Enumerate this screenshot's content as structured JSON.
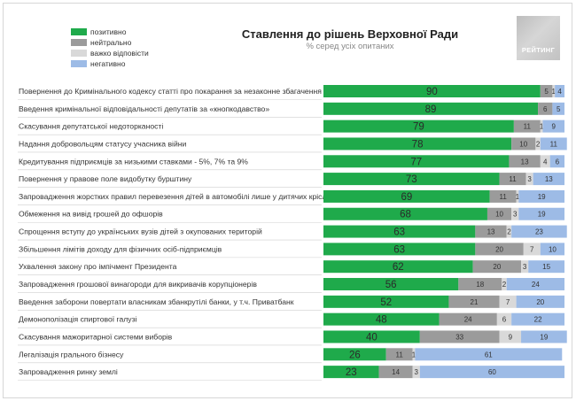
{
  "header": {
    "title": "Ставлення до рішень Верховної Ради",
    "subtitle": "% серед усіх опитаних",
    "logo_text": "РЕЙТИНГ"
  },
  "legend": [
    {
      "label": "позитивно",
      "color": "#1faa4b"
    },
    {
      "label": "нейтрально",
      "color": "#9b9b9b"
    },
    {
      "label": "важко відповісти",
      "color": "#d9d9d9"
    },
    {
      "label": "негативно",
      "color": "#9dbbe6"
    }
  ],
  "chart_data": {
    "type": "bar",
    "stacked": true,
    "orientation": "horizontal",
    "title": "Ставлення до рішень Верховної Ради",
    "subtitle": "% серед усіх опитаних",
    "categories": [
      "Повернення до Кримінального кодексу статті про покарання за незаконне збагачення",
      "Введення кримінальної відповідальності депутатів за «кнопкодавство»",
      "Скасування депутатської недоторканості",
      "Надання добровольцям статусу учасника війни",
      "Кредитування підприємців за низькими ставками - 5%, 7% та 9%",
      "Повернення у правове поле видобутку бурштину",
      "Запровадження жорстких правил перевезення дітей в автомобілі лише у дитячих кріслах",
      "Обмеження на вивід грошей до офшорів",
      "Спрощення вступу до українських вузів дітей з окупованих територій",
      "Збільшення лімітів доходу для фізичних осіб-підприємців",
      "Ухвалення закону про імпічмент Президента",
      "Запровадження грошової винагороди для викривачів корупціонерів",
      "Введення заборони повертати власникам збанкрутілі банки, у т.ч. Приватбанк",
      "Демонополізація спиртової галузі",
      "Скасування мажоритарної системи виборів",
      "Легалізація грального бізнесу",
      "Запровадження ринку землі"
    ],
    "series": [
      {
        "name": "позитивно",
        "color": "#1faa4b",
        "values": [
          90,
          89,
          79,
          78,
          77,
          73,
          69,
          68,
          63,
          63,
          62,
          56,
          52,
          48,
          40,
          26,
          23
        ]
      },
      {
        "name": "нейтрально",
        "color": "#9b9b9b",
        "values": [
          5,
          6,
          11,
          10,
          13,
          11,
          11,
          10,
          13,
          20,
          20,
          18,
          21,
          24,
          33,
          11,
          14
        ]
      },
      {
        "name": "важко відповісти",
        "color": "#d9d9d9",
        "values": [
          1,
          0,
          1,
          2,
          4,
          3,
          1,
          3,
          2,
          7,
          3,
          2,
          7,
          6,
          9,
          1,
          3
        ]
      },
      {
        "name": "негативно",
        "color": "#9dbbe6",
        "values": [
          4,
          5,
          9,
          11,
          6,
          13,
          19,
          19,
          23,
          10,
          15,
          24,
          20,
          22,
          19,
          61,
          60
        ]
      }
    ],
    "labels": [
      [
        "90",
        "5",
        "1",
        "4"
      ],
      [
        "89",
        "6",
        "",
        "5"
      ],
      [
        "79",
        "11",
        "1",
        "9"
      ],
      [
        "78",
        "10",
        "2",
        "11"
      ],
      [
        "77",
        "13",
        "4",
        "6"
      ],
      [
        "73",
        "11",
        "3",
        "13"
      ],
      [
        "69",
        "11",
        "1",
        "19"
      ],
      [
        "68",
        "10",
        "3",
        "19"
      ],
      [
        "63",
        "13",
        "2",
        "23"
      ],
      [
        "63",
        "20",
        "7",
        "10"
      ],
      [
        "62",
        "20",
        "3",
        "15"
      ],
      [
        "56",
        "18",
        "2",
        "24"
      ],
      [
        "52",
        "21",
        "7",
        "20"
      ],
      [
        "48",
        "24",
        "6",
        "22"
      ],
      [
        "40",
        "33",
        "9",
        "19"
      ],
      [
        "26",
        "11",
        "1",
        "61"
      ],
      [
        "23",
        "14",
        "3",
        "60"
      ]
    ],
    "xlim": [
      0,
      100
    ],
    "legend_position": "top-left",
    "grid": false
  }
}
